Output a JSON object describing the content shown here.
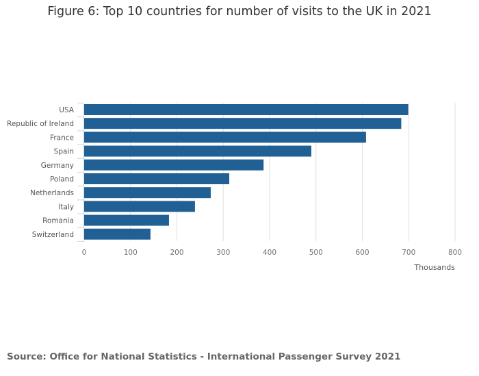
{
  "chart_data": {
    "type": "bar",
    "orientation": "horizontal",
    "title": "Figure 6: Top 10 countries for number of visits to the UK in 2021",
    "categories": [
      "USA",
      "Republic of Ireland",
      "France",
      "Spain",
      "Germany",
      "Poland",
      "Netherlands",
      "Italy",
      "Romania",
      "Switzerland"
    ],
    "values": [
      699,
      684,
      608,
      490,
      387,
      313,
      273,
      239,
      183,
      143
    ],
    "xlabel": "Thousands",
    "ylabel": "",
    "xlim": [
      0,
      800
    ],
    "xticks": [
      0,
      100,
      200,
      300,
      400,
      500,
      600,
      700,
      800
    ],
    "grid": true,
    "bar_color": "#206095"
  },
  "source": "Source: Office for National Statistics - International Passenger Survey 2021"
}
